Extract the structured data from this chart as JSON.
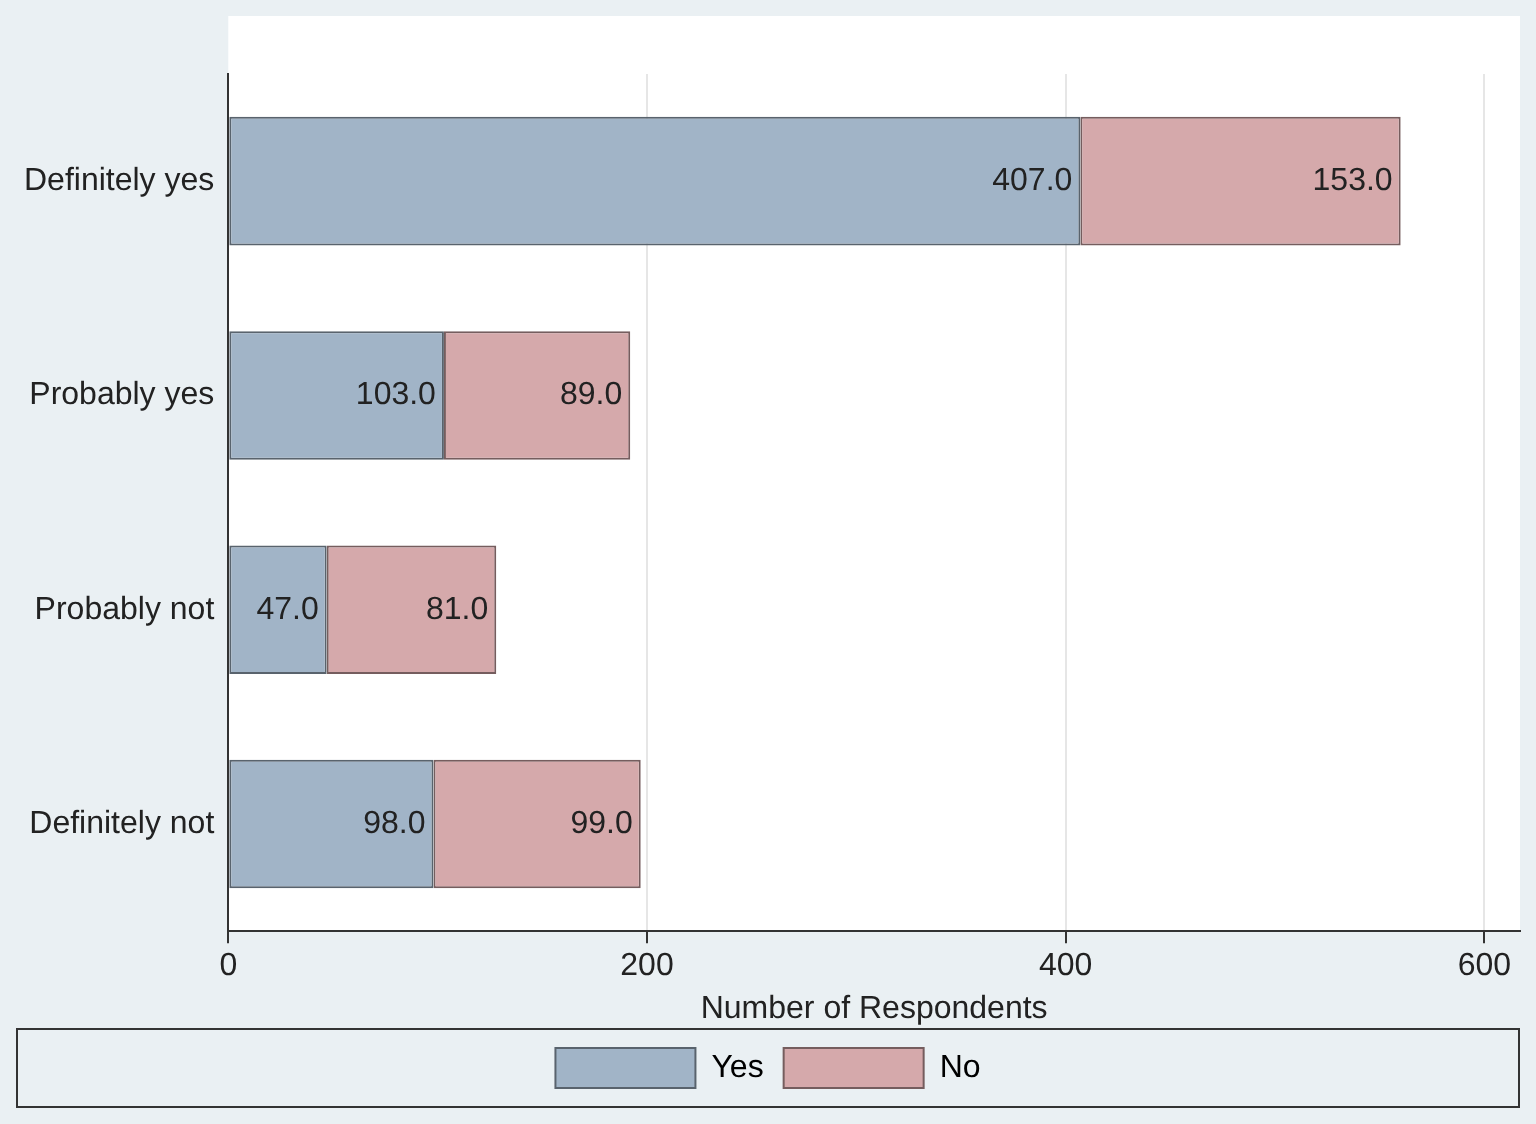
{
  "chart_data": {
    "type": "bar",
    "orientation": "horizontal",
    "stacked": true,
    "xlabel": "Number of Respondents",
    "categories": [
      "Definitely yes",
      "Probably yes",
      "Probably not",
      "Definitely not"
    ],
    "series": [
      {
        "name": "Yes",
        "color": "#a1b4c7",
        "values": [
          407,
          103,
          47,
          98
        ],
        "value_labels": [
          "407.0",
          "103.0",
          "47.0",
          "98.0"
        ]
      },
      {
        "name": "No",
        "color": "#d5a9ab",
        "values": [
          153,
          89,
          81,
          99
        ],
        "value_labels": [
          "153.0",
          "89.0",
          "81.0",
          "99.0"
        ]
      }
    ],
    "xlim": [
      0,
      617
    ],
    "xticks": [
      0,
      200,
      400,
      600
    ],
    "grid": "x",
    "legend": "bottom"
  }
}
